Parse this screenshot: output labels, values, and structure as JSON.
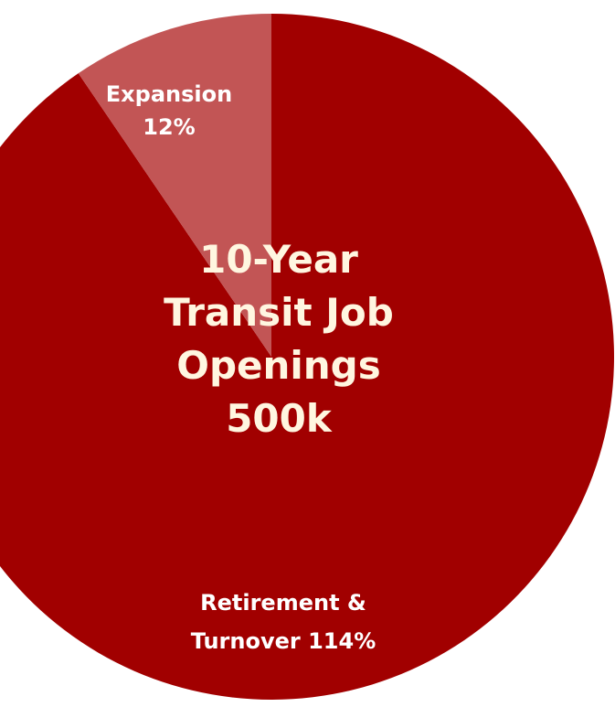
{
  "chart_data": {
    "type": "pie",
    "title": "10-Year Transit Job Openings",
    "subtitle": "500k",
    "categories": [
      "Retirement & Turnover",
      "Expansion"
    ],
    "values": [
      114,
      12
    ],
    "value_labels": [
      "114%",
      "12%"
    ],
    "colors": [
      "#a10000",
      "#c25555"
    ]
  }
}
